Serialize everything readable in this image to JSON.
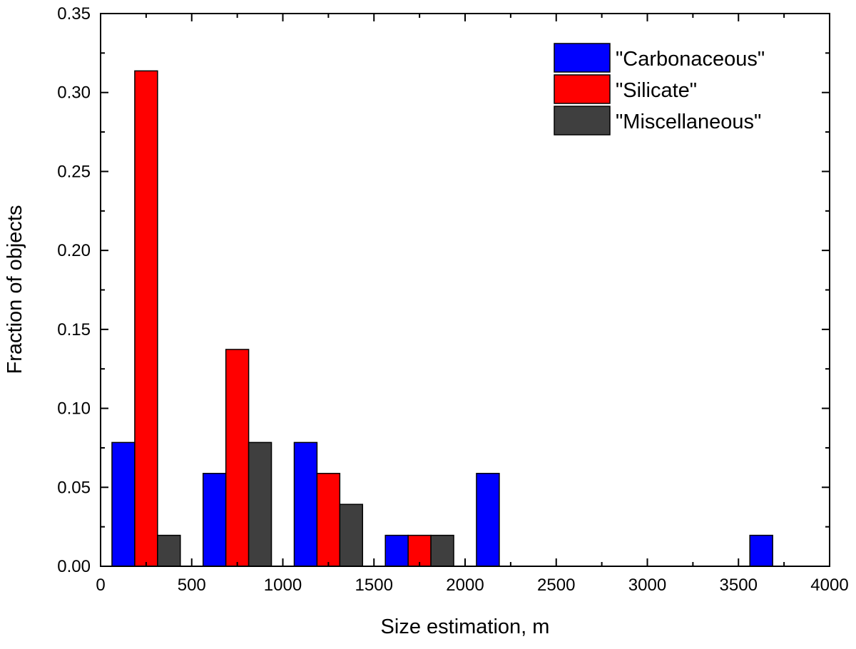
{
  "chart_data": {
    "type": "bar",
    "title": "",
    "xlabel": "Size estimation, m",
    "ylabel": "Fraction of objects",
    "xlim": [
      0,
      4000
    ],
    "ylim": [
      0,
      0.35
    ],
    "bin_width": 125,
    "xticks": [
      0,
      500,
      1000,
      1500,
      2000,
      2500,
      3000,
      3500,
      4000
    ],
    "xtick_labels": [
      "0",
      "500",
      "1000",
      "1500",
      "2000",
      "2500",
      "3000",
      "3500",
      "4000"
    ],
    "yticks": [
      0,
      0.05,
      0.1,
      0.15,
      0.2,
      0.25,
      0.3,
      0.35
    ],
    "ytick_labels": [
      "0.00",
      "0.05",
      "0.10",
      "0.15",
      "0.20",
      "0.25",
      "0.30",
      "0.35"
    ],
    "legend_position": "top-right",
    "series": [
      {
        "name": "\"Carbonaceous\"",
        "color": "#0000ff",
        "bins": [
          {
            "x_start": 62.5,
            "value": 0.0784
          },
          {
            "x_start": 562.5,
            "value": 0.0588
          },
          {
            "x_start": 1062.5,
            "value": 0.0784
          },
          {
            "x_start": 1562.5,
            "value": 0.0196
          },
          {
            "x_start": 2062.5,
            "value": 0.0588
          },
          {
            "x_start": 3562.5,
            "value": 0.0196
          }
        ]
      },
      {
        "name": "\"Silicate\"",
        "color": "#ff0000",
        "bins": [
          {
            "x_start": 187.5,
            "value": 0.3137
          },
          {
            "x_start": 687.5,
            "value": 0.1373
          },
          {
            "x_start": 1187.5,
            "value": 0.0588
          },
          {
            "x_start": 1687.5,
            "value": 0.0196
          }
        ]
      },
      {
        "name": "\"Miscellaneous\"",
        "color": "#3f3f3f",
        "bins": [
          {
            "x_start": 312.5,
            "value": 0.0196
          },
          {
            "x_start": 812.5,
            "value": 0.0784
          },
          {
            "x_start": 1312.5,
            "value": 0.0392
          },
          {
            "x_start": 1812.5,
            "value": 0.0196
          }
        ]
      }
    ]
  }
}
